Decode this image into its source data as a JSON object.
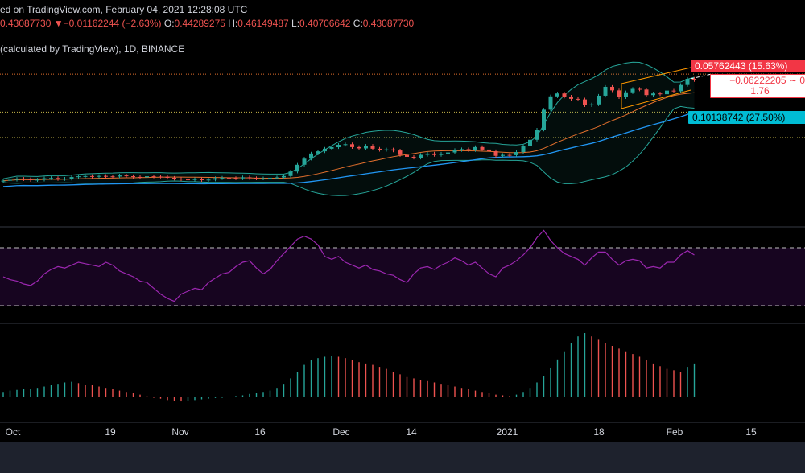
{
  "header": {
    "line1": "ed on TradingView.com, February 04, 2021 12:28:08 UTC",
    "ohlc": {
      "last": "0.43087730",
      "arrow": "▼",
      "change": "−0.01162244 (−2.63%)",
      "o_label": "O:",
      "o": "0.44289275",
      "h_label": "H:",
      "h": "0.46149487",
      "l_label": "L:",
      "l": "0.40706642",
      "c_label": "C:",
      "c": "0.43087730"
    },
    "indicator_line": "(calculated by TradingView), 1D, BINANCE"
  },
  "price_tags": {
    "red": "0.05762443 (15.63%)",
    "white_1": "−0.06222205 ∼ 0",
    "white_2": "1.76",
    "cyan": "0.10138742 (27.50%)"
  },
  "colors": {
    "up": "#26a69a",
    "down": "#ef5350",
    "bollinger": "#26a69a",
    "ma_slow": "#2196f3",
    "ma_fast": "#e3702d",
    "rsi": "#9c27b0",
    "channel": "#ff9800",
    "bg": "#000000"
  },
  "chart_data": {
    "type": "candlestick",
    "symbol_interval": "1D",
    "exchange": "BINANCE",
    "x_ticks": [
      "Oct",
      "19",
      "Nov",
      "16",
      "Dec",
      "14",
      "2021",
      "18",
      "Feb",
      "15"
    ],
    "price_ylim": [
      0.17,
      0.47
    ],
    "levels": [
      0.4435,
      0.3655,
      0.3135
    ],
    "close": [
      0.225,
      0.2268,
      0.229,
      0.2282,
      0.2262,
      0.2271,
      0.23,
      0.2305,
      0.2284,
      0.2292,
      0.2325,
      0.234,
      0.2345,
      0.2332,
      0.2348,
      0.234,
      0.2335,
      0.2358,
      0.2342,
      0.2328,
      0.232,
      0.2341,
      0.2335,
      0.2332,
      0.231,
      0.2292,
      0.2276,
      0.2265,
      0.2283,
      0.226,
      0.2272,
      0.2301,
      0.2311,
      0.2304,
      0.2298,
      0.232,
      0.2304,
      0.2296,
      0.23,
      0.2311,
      0.2318,
      0.2346,
      0.2438,
      0.2577,
      0.2701,
      0.2807,
      0.2852,
      0.2905,
      0.2936,
      0.2985,
      0.2997,
      0.2938,
      0.2912,
      0.2965,
      0.2905,
      0.288,
      0.2891,
      0.2869,
      0.2776,
      0.2739,
      0.2722,
      0.278,
      0.2806,
      0.2777,
      0.2805,
      0.2828,
      0.2878,
      0.2896,
      0.2877,
      0.2939,
      0.2888,
      0.2854,
      0.2759,
      0.2778,
      0.2773,
      0.2837,
      0.2963,
      0.3088,
      0.3296,
      0.3705,
      0.3978,
      0.4037,
      0.3972,
      0.3927,
      0.3915,
      0.3795,
      0.3813,
      0.3992,
      0.4173,
      0.4101,
      0.3961,
      0.4061,
      0.4131,
      0.4118,
      0.4004,
      0.4037,
      0.4022,
      0.4096,
      0.4082,
      0.4211,
      0.4337,
      0.431
    ],
    "rsi_ylim": [
      20,
      80
    ],
    "rsi_bands": [
      70,
      30
    ],
    "rsi": [
      50,
      48,
      47,
      45,
      44,
      47,
      52,
      55,
      57,
      56,
      58,
      60,
      59,
      58,
      57,
      60,
      58,
      54,
      52,
      50,
      47,
      46,
      42,
      38,
      35,
      33,
      38,
      40,
      42,
      41,
      46,
      49,
      52,
      53,
      57,
      60,
      61,
      56,
      52,
      55,
      61,
      66,
      71,
      76,
      78,
      76,
      72,
      64,
      62,
      64,
      60,
      58,
      56,
      58,
      55,
      54,
      52,
      51,
      48,
      46,
      52,
      56,
      57,
      55,
      58,
      60,
      63,
      61,
      58,
      60,
      56,
      52,
      50,
      56,
      58,
      61,
      65,
      70,
      77,
      82,
      75,
      70,
      66,
      64,
      62,
      58,
      63,
      67,
      67,
      62,
      58,
      61,
      62,
      61,
      56,
      57,
      56,
      60,
      60,
      65,
      68,
      65
    ],
    "hist": [
      0.0008,
      0.001,
      0.0011,
      0.0012,
      0.0013,
      0.0014,
      0.0016,
      0.0018,
      0.002,
      0.0022,
      0.0023,
      0.0021,
      0.0019,
      0.0018,
      0.0016,
      0.0014,
      0.0012,
      0.001,
      0.0008,
      0.0006,
      0.0004,
      0.0002,
      0.0,
      -0.0002,
      -0.0004,
      -0.0005,
      -0.0006,
      -0.0005,
      -0.0004,
      -0.0003,
      -0.0002,
      -0.0001,
      0.0,
      0.0001,
      0.0002,
      0.0003,
      0.0005,
      0.0007,
      0.0008,
      0.001,
      0.0014,
      0.002,
      0.0028,
      0.0038,
      0.0048,
      0.0055,
      0.0058,
      0.006,
      0.0061,
      0.006,
      0.0058,
      0.0055,
      0.0052,
      0.005,
      0.0048,
      0.0045,
      0.0042,
      0.0038,
      0.0034,
      0.003,
      0.0028,
      0.0026,
      0.0024,
      0.0022,
      0.002,
      0.0018,
      0.0016,
      0.0014,
      0.0012,
      0.001,
      0.0008,
      0.0006,
      0.0004,
      0.0003,
      0.0002,
      0.0004,
      0.0008,
      0.0014,
      0.0022,
      0.0032,
      0.0044,
      0.0056,
      0.0068,
      0.008,
      0.009,
      0.0095,
      0.009,
      0.0085,
      0.008,
      0.0076,
      0.0072,
      0.0068,
      0.0064,
      0.006,
      0.0055,
      0.005,
      0.0046,
      0.0042,
      0.004,
      0.0038,
      0.0045,
      0.005
    ]
  }
}
